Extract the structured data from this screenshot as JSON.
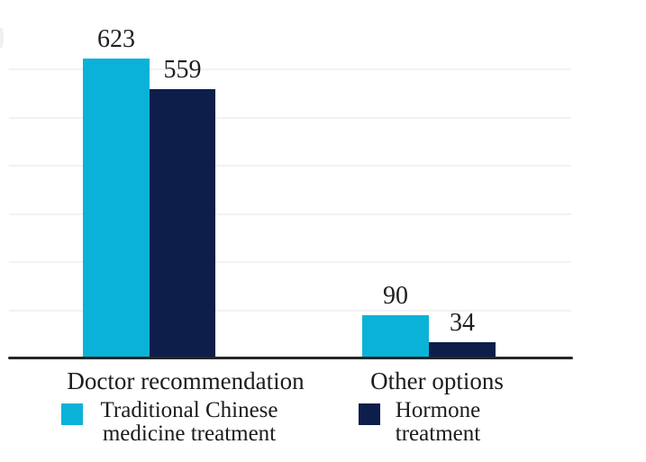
{
  "chart_data": {
    "type": "bar",
    "categories": [
      "Doctor recommendation",
      "Other options"
    ],
    "series": [
      {
        "name": "Traditional Chinese medicine treatment",
        "color": "#0bb2d8",
        "values": [
          623,
          90
        ]
      },
      {
        "name": "Hormone treatment",
        "color": "#0d1e4b",
        "values": [
          559,
          34
        ]
      }
    ],
    "title": "",
    "xlabel": "",
    "ylabel": "",
    "ylim": [
      0,
      650
    ],
    "gridline_values": [
      100,
      200,
      300,
      400,
      500,
      600
    ],
    "grid": true,
    "legend_position": "bottom",
    "value_labels_shown": true,
    "colors": {
      "axis": "#262626",
      "gridline": "#f2f2f2",
      "text": "#1c1c1c"
    }
  },
  "legend": {
    "items": [
      {
        "line1": "Traditional Chinese",
        "line2": "medicine treatment",
        "color": "#0bb2d8"
      },
      {
        "line1": "Hormone",
        "line2": "treatment",
        "color": "#0d1e4b"
      }
    ]
  }
}
